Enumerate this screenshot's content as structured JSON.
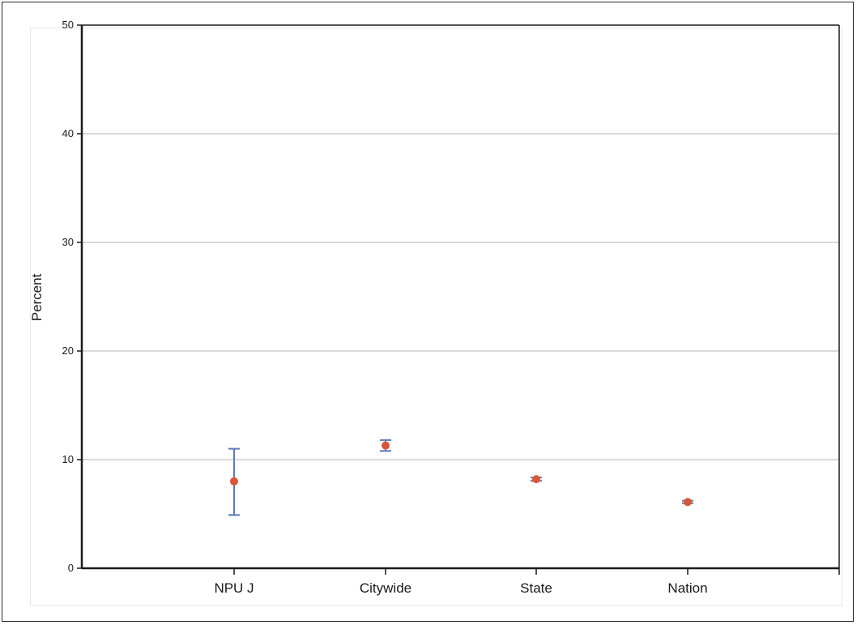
{
  "chart_data": {
    "type": "scatter",
    "categories": [
      "NPU J",
      "Citywide",
      "State",
      "Nation"
    ],
    "series": [
      {
        "values": [
          8.0,
          11.3,
          8.2,
          6.1
        ],
        "error_low": [
          4.9,
          10.8,
          8.05,
          5.98
        ],
        "error_high": [
          11.0,
          11.8,
          8.35,
          6.22
        ]
      }
    ],
    "title": "",
    "xlabel": "",
    "ylabel": "Percent",
    "ylim": [
      0,
      50
    ],
    "yticks": [
      "0",
      "10",
      "20",
      "30",
      "40",
      "50"
    ],
    "grid": "horizontal",
    "colors": {
      "point": "#d9553a",
      "errorbar": "#5b7bb5",
      "grid": "#b3b3b3",
      "axis": "#1a1a1a"
    }
  }
}
